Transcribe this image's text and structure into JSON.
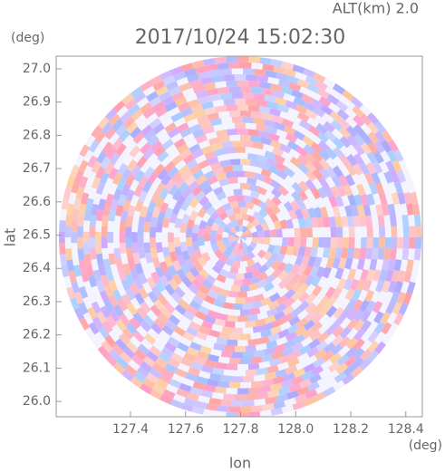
{
  "chart_data": {
    "type": "radar-ppi",
    "altitude_label": "ALT(km) 2.0",
    "title": "2017/10/24 15:02:30",
    "y_unit": "(deg)",
    "x_unit": "(deg)",
    "ylabel": "lat",
    "xlabel": "lon",
    "xlim": [
      127.13,
      128.46
    ],
    "ylim": [
      25.954,
      27.038
    ],
    "xticks": [
      127.4,
      127.6,
      127.8,
      {
        "value": 128.0,
        "label": "128.0"
      },
      128.2,
      128.4
    ],
    "yticks": [
      {
        "value": 27.0,
        "label": "27.0"
      },
      26.9,
      26.8,
      26.7,
      26.6,
      26.5,
      26.4,
      26.3,
      26.2,
      26.1,
      {
        "value": 26.0,
        "label": "26.0"
      }
    ]
  }
}
